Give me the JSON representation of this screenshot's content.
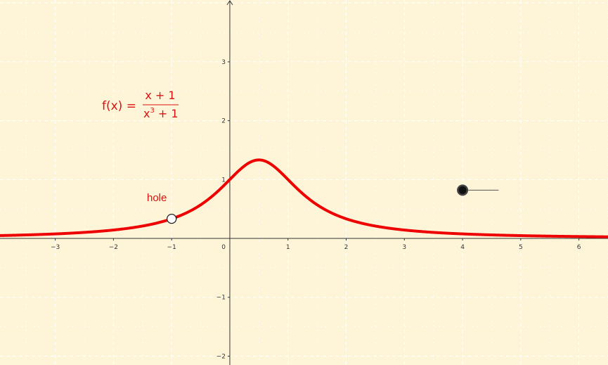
{
  "colors": {
    "background": "#fef5d9",
    "grid": "#ffffff",
    "axis": "#333333",
    "curve": "#ee0000",
    "label": "#dd1111",
    "slider": "#222222"
  },
  "formula": {
    "lhs": "f(x) =",
    "numerator": "x + 1",
    "denominator_base": "x",
    "denominator_exponent": "3",
    "denominator_rest": " + 1"
  },
  "chart_data": {
    "type": "line",
    "function": "f(x) = (x + 1) / (x^3 + 1)",
    "xlim": [
      -3.95,
      6.5
    ],
    "ylim": [
      -2.15,
      4.05
    ],
    "grid": true,
    "x_ticks": [
      -3,
      -2,
      -1,
      1,
      2,
      3,
      4,
      5,
      6
    ],
    "x_tick_labels": [
      "−3",
      "−2",
      "−1",
      "1",
      "2",
      "3",
      "4",
      "5",
      "6"
    ],
    "y_ticks": [
      -2,
      -1,
      1,
      2,
      3
    ],
    "y_tick_labels": [
      "−2",
      "−1",
      "1",
      "2",
      "3"
    ],
    "origin_label": "0",
    "hole": {
      "x": -1,
      "y": 0.3333,
      "label": "hole"
    },
    "slider": {
      "knob_x": 4,
      "knob_y": 0.82,
      "end_x": 4.62
    }
  }
}
